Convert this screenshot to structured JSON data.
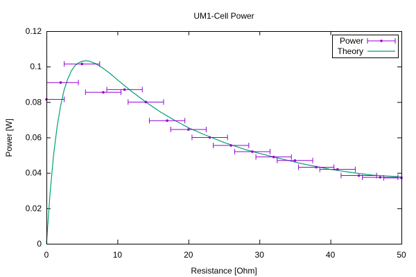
{
  "chart_data": {
    "type": "scatter",
    "title": "UM1-Cell Power",
    "xlabel": "Resistance [Ohm]",
    "ylabel": "Power [W]",
    "xlim": [
      0,
      50
    ],
    "ylim": [
      0,
      0.12
    ],
    "x_ticks": [
      0,
      10,
      20,
      30,
      40,
      50
    ],
    "x_tick_labels": [
      "0",
      "10",
      "20",
      "30",
      "40",
      "50"
    ],
    "y_ticks": [
      0,
      0.02,
      0.04,
      0.06,
      0.08,
      0.1,
      0.12
    ],
    "y_tick_labels": [
      "0",
      "0.02",
      "0.04",
      "0.06",
      "0.08",
      "0.1",
      "0.12"
    ],
    "grid": false,
    "legend_position": "top-right",
    "series": [
      {
        "name": "Power",
        "color": "#9400d3",
        "style": "points with x error bars",
        "points": [
          {
            "x": 0,
            "y": 0.0815,
            "xerr": 2.5
          },
          {
            "x": 2,
            "y": 0.091,
            "xerr": 2.5
          },
          {
            "x": 5,
            "y": 0.1015,
            "xerr": 2.5
          },
          {
            "x": 8,
            "y": 0.0855,
            "xerr": 2.5
          },
          {
            "x": 11,
            "y": 0.087,
            "xerr": 2.5
          },
          {
            "x": 14,
            "y": 0.08,
            "xerr": 2.5
          },
          {
            "x": 17,
            "y": 0.0695,
            "xerr": 2.5
          },
          {
            "x": 20,
            "y": 0.0645,
            "xerr": 2.5
          },
          {
            "x": 23,
            "y": 0.06,
            "xerr": 2.5
          },
          {
            "x": 26,
            "y": 0.0555,
            "xerr": 2.5
          },
          {
            "x": 29,
            "y": 0.052,
            "xerr": 2.5
          },
          {
            "x": 32,
            "y": 0.049,
            "xerr": 2.5
          },
          {
            "x": 35,
            "y": 0.047,
            "xerr": 2.5
          },
          {
            "x": 38,
            "y": 0.0432,
            "xerr": 2.5
          },
          {
            "x": 41,
            "y": 0.042,
            "xerr": 2.5
          },
          {
            "x": 44,
            "y": 0.0385,
            "xerr": 2.5
          },
          {
            "x": 47,
            "y": 0.0375,
            "xerr": 2.5
          },
          {
            "x": 50,
            "y": 0.0372,
            "xerr": 2.5
          }
        ]
      },
      {
        "name": "Theory",
        "color": "#009e73",
        "style": "line",
        "points": [
          {
            "x": 0,
            "y": 0
          },
          {
            "x": 0.5,
            "y": 0.028
          },
          {
            "x": 1,
            "y": 0.05
          },
          {
            "x": 1.5,
            "y": 0.066
          },
          {
            "x": 2,
            "y": 0.078
          },
          {
            "x": 2.5,
            "y": 0.087
          },
          {
            "x": 3,
            "y": 0.093
          },
          {
            "x": 3.5,
            "y": 0.0975
          },
          {
            "x": 4,
            "y": 0.1005
          },
          {
            "x": 4.5,
            "y": 0.102
          },
          {
            "x": 5,
            "y": 0.103
          },
          {
            "x": 5.5,
            "y": 0.1033
          },
          {
            "x": 6,
            "y": 0.1031
          },
          {
            "x": 7,
            "y": 0.1015
          },
          {
            "x": 8,
            "y": 0.099
          },
          {
            "x": 9,
            "y": 0.096
          },
          {
            "x": 10,
            "y": 0.0925
          },
          {
            "x": 12,
            "y": 0.086
          },
          {
            "x": 14,
            "y": 0.08
          },
          {
            "x": 16,
            "y": 0.0745
          },
          {
            "x": 18,
            "y": 0.0698
          },
          {
            "x": 20,
            "y": 0.0655
          },
          {
            "x": 22,
            "y": 0.062
          },
          {
            "x": 25,
            "y": 0.0572
          },
          {
            "x": 28,
            "y": 0.0532
          },
          {
            "x": 30,
            "y": 0.051
          },
          {
            "x": 33,
            "y": 0.048
          },
          {
            "x": 36,
            "y": 0.0452
          },
          {
            "x": 40,
            "y": 0.042
          },
          {
            "x": 43,
            "y": 0.0402
          },
          {
            "x": 46,
            "y": 0.0387
          },
          {
            "x": 50,
            "y": 0.0378
          }
        ]
      }
    ]
  }
}
